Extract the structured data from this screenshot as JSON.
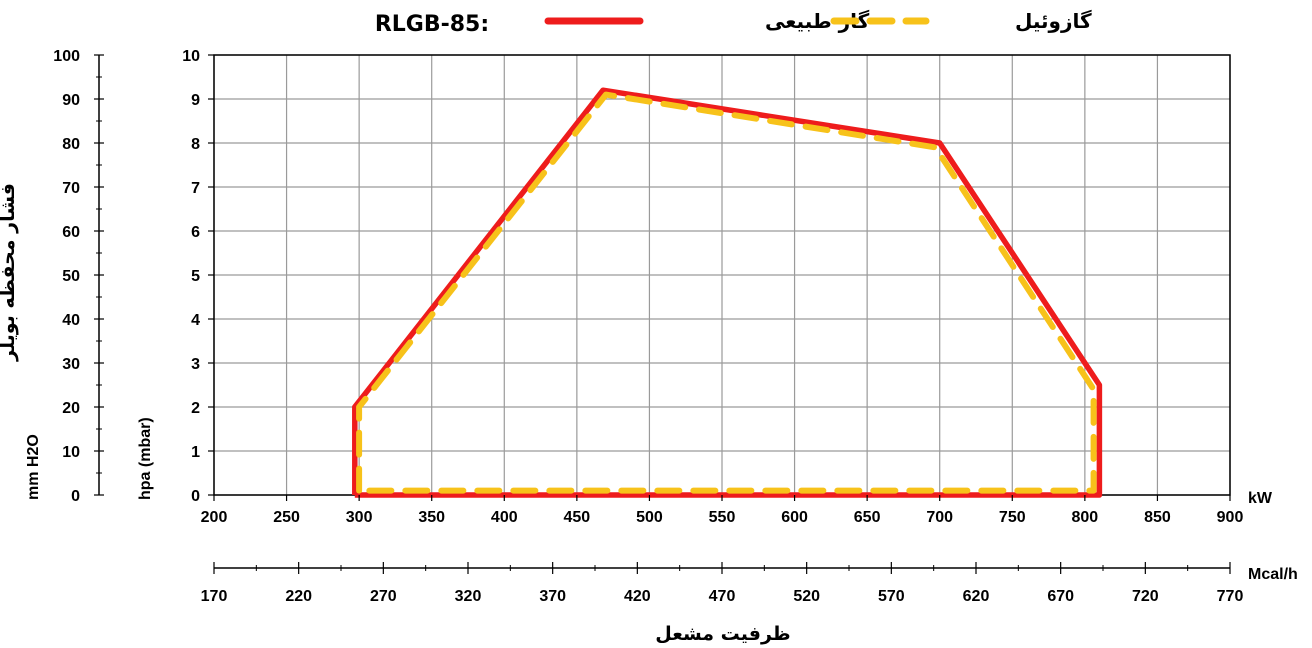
{
  "chart_data": {
    "type": "line",
    "title": "RLGB-85:",
    "legend": {
      "placement": "top",
      "entries": [
        {
          "name": "گاز طبیعی",
          "color": "#ee1c1c",
          "style": "solid"
        },
        {
          "name": "گازوئیل",
          "color": "#f7c21a",
          "style": "dashed"
        }
      ]
    },
    "x_axis": {
      "label": "kW",
      "range": [
        200,
        900
      ],
      "ticks": [
        200,
        250,
        300,
        350,
        400,
        450,
        500,
        550,
        600,
        650,
        700,
        750,
        800,
        850,
        900
      ],
      "grid": true
    },
    "x2_axis": {
      "label": "Mcal/h",
      "ticks": [
        170,
        220,
        270,
        320,
        370,
        420,
        470,
        520,
        570,
        620,
        670,
        720,
        770
      ]
    },
    "x_caption": "ظرفیت مشعل",
    "y_axis": {
      "label": "hpa (mbar)",
      "range": [
        0,
        10
      ],
      "ticks": [
        0,
        1,
        2,
        3,
        4,
        5,
        6,
        7,
        8,
        9,
        10
      ],
      "grid": true
    },
    "y2_axis": {
      "label": "mm H2O",
      "ticks": [
        0,
        10,
        20,
        30,
        40,
        50,
        60,
        70,
        80,
        90,
        100
      ]
    },
    "y_caption": "فشار محفظه بویلر",
    "series": [
      {
        "name": "گاز طبیعی",
        "color": "#ee1c1c",
        "style": "solid",
        "points": [
          [
            297,
            0
          ],
          [
            297,
            2
          ],
          [
            468,
            9.2
          ],
          [
            700,
            8
          ],
          [
            810,
            2.5
          ],
          [
            810,
            0
          ],
          [
            297,
            0
          ]
        ]
      },
      {
        "name": "گازوئیل",
        "color": "#f7c21a",
        "style": "dashed",
        "points": [
          [
            300,
            0.1
          ],
          [
            300,
            2
          ],
          [
            470,
            9.1
          ],
          [
            697,
            7.9
          ],
          [
            806,
            2.4
          ],
          [
            806,
            0.1
          ],
          [
            300,
            0.1
          ]
        ]
      }
    ]
  }
}
